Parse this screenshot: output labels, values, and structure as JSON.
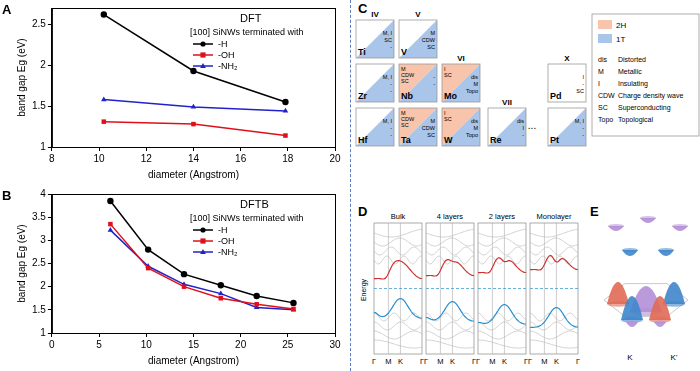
{
  "chart_data": [
    {
      "type": "line",
      "title": "DFT",
      "legend_title": "[100] SiNWs terminated with",
      "annotations": [
        "A"
      ],
      "x_label": "diameter (Angstrom)",
      "y_label": "band gap Eg (eV)",
      "x": [
        10.2,
        14,
        17.9
      ],
      "series": [
        {
          "name": "-H",
          "color": "#000000",
          "marker": "circle",
          "values": [
            2.62,
            1.93,
            1.55
          ]
        },
        {
          "name": "-OH",
          "color": "#e0101a",
          "marker": "square",
          "values": [
            1.31,
            1.28,
            1.14
          ]
        },
        {
          "name": "-NH₂",
          "color": "#2222cc",
          "marker": "triangle",
          "values": [
            1.58,
            1.49,
            1.44
          ]
        }
      ],
      "xlim": [
        8,
        20
      ],
      "xticks": [
        8,
        10,
        12,
        14,
        16,
        18,
        20
      ],
      "ylim": [
        1,
        2.7
      ],
      "yticks": [
        1,
        1.5,
        2,
        2.5
      ],
      "grid": false,
      "legend": "upper right"
    },
    {
      "type": "line",
      "title": "DFTB",
      "legend_title": "[100] SiNWs terminated with",
      "annotations": [
        "B"
      ],
      "x_label": "diameter (Angstrom)",
      "y_label": "band gap Eg (eV)",
      "x": [
        6.2,
        10.2,
        14,
        17.9,
        21.7,
        25.6
      ],
      "series": [
        {
          "name": "-H",
          "color": "#000000",
          "marker": "circle",
          "values": [
            3.85,
            2.8,
            2.27,
            2.03,
            1.8,
            1.65
          ]
        },
        {
          "name": "-OH",
          "color": "#e0101a",
          "marker": "square",
          "values": [
            3.35,
            2.4,
            2.0,
            1.75,
            1.62,
            1.52
          ]
        },
        {
          "name": "-NH₂",
          "color": "#2222cc",
          "marker": "triangle",
          "values": [
            3.22,
            2.44,
            2.05,
            1.85,
            1.55,
            1.5
          ]
        }
      ],
      "xlim": [
        0,
        30
      ],
      "xticks": [
        0,
        5,
        10,
        15,
        20,
        25,
        30
      ],
      "ylim": [
        1,
        4
      ],
      "yticks": [
        1,
        1.5,
        2,
        2.5,
        3,
        3.5,
        4
      ],
      "grid": false,
      "legend": "upper right"
    }
  ],
  "panel_c": {
    "label": "C",
    "groups": [
      {
        "name": "IV",
        "elements": [
          {
            "symbol": "Ti",
            "1T": [
              "M, I",
              "SC",
              "-"
            ]
          },
          {
            "symbol": "Zr",
            "1T": [
              "M, I",
              "-",
              "-"
            ]
          },
          {
            "symbol": "Hf",
            "1T": [
              "M, I",
              "-",
              "-"
            ]
          }
        ]
      },
      {
        "name": "V",
        "elements": [
          {
            "symbol": "V",
            "1T": [
              "M",
              "CDW",
              "SC"
            ]
          },
          {
            "symbol": "Nb",
            "2H": [
              "M",
              "CDW",
              "SC"
            ],
            "1T": [
              "-",
              "-"
            ]
          },
          {
            "symbol": "Ta",
            "2H": [
              "M",
              "CDW",
              "SC"
            ],
            "1T": [
              "M",
              "CDW",
              "SC"
            ]
          }
        ]
      },
      {
        "name": "VI",
        "elements": [
          {
            "symbol": "Mo",
            "2H": [
              "I",
              "SC"
            ],
            "1T": [
              "dis",
              "M",
              "Topo"
            ]
          },
          {
            "symbol": "W",
            "2H": [
              "I",
              "SC"
            ],
            "1T": [
              "dis",
              "M",
              "Topo"
            ]
          }
        ]
      },
      {
        "name": "VII",
        "elements": [
          {
            "symbol": "Re",
            "1T": [
              "dis",
              "I",
              "-"
            ]
          }
        ]
      },
      {
        "name": "X",
        "elements": [
          {
            "symbol": "Pd",
            "props": [
              "I",
              "-",
              "SC"
            ]
          },
          {
            "symbol": "Pt",
            "1T": [
              "M, I",
              "-",
              "-"
            ]
          }
        ]
      }
    ],
    "ellipsis": "...",
    "phases": [
      {
        "name": "2H",
        "color": "#f8c4ab"
      },
      {
        "name": "1T",
        "color": "#a9c5e9"
      }
    ],
    "key": [
      {
        "abbr": "dis",
        "text": "Distorted"
      },
      {
        "abbr": "M",
        "text": "Metallic"
      },
      {
        "abbr": "I",
        "text": "Insulating"
      },
      {
        "abbr": "CDW",
        "text": "Charge density wave"
      },
      {
        "abbr": "SC",
        "text": "Superconducting"
      },
      {
        "abbr": "Topo",
        "text": "Topological"
      }
    ]
  },
  "panel_d": {
    "label": "D",
    "panels": [
      "Bulk",
      "4 layers",
      "2 layers",
      "Monolayer"
    ],
    "y_label": "Energy",
    "k_path": [
      "Γ",
      "M",
      "K",
      "Γ"
    ]
  },
  "panel_e": {
    "label": "E",
    "points": [
      "K",
      "K'"
    ]
  }
}
